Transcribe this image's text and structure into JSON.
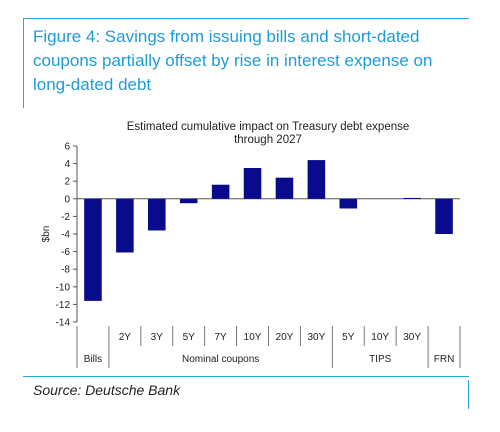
{
  "figure": {
    "title": "Figure 4: Savings from issuing bills and short-dated coupons partially offset by rise in interest expense on long-dated debt",
    "source": "Source: Deutsche Bank"
  },
  "colors": {
    "accent": "#1f9bd7",
    "bar": "#0a0a8c"
  },
  "chart_data": {
    "type": "bar",
    "title_lines": [
      "Estimated cumulative impact on Treasury debt expense",
      "through 2027"
    ],
    "ylabel": "$bn",
    "xlabel": "",
    "ylim": [
      -14,
      6
    ],
    "yticks": [
      6,
      4,
      2,
      0,
      -2,
      -4,
      -6,
      -8,
      -10,
      -12,
      -14
    ],
    "categories": [
      "Bills",
      "2Y",
      "3Y",
      "5Y",
      "7Y",
      "10Y",
      "20Y",
      "30Y",
      "5Y",
      "10Y",
      "30Y",
      "FRN"
    ],
    "category_labels": [
      "",
      "2Y",
      "3Y",
      "5Y",
      "7Y",
      "10Y",
      "20Y",
      "30Y",
      "5Y",
      "10Y",
      "30Y",
      ""
    ],
    "values": [
      -11.6,
      -6.1,
      -3.6,
      -0.5,
      1.6,
      3.5,
      2.4,
      4.4,
      -1.1,
      0.0,
      0.1,
      -4.0
    ],
    "groups": [
      {
        "label": "Bills",
        "start": 0,
        "end": 0
      },
      {
        "label": "Nominal coupons",
        "start": 1,
        "end": 7
      },
      {
        "label": "TIPS",
        "start": 8,
        "end": 10
      },
      {
        "label": "FRN",
        "start": 11,
        "end": 11
      }
    ],
    "grid": false,
    "legend": "none"
  }
}
